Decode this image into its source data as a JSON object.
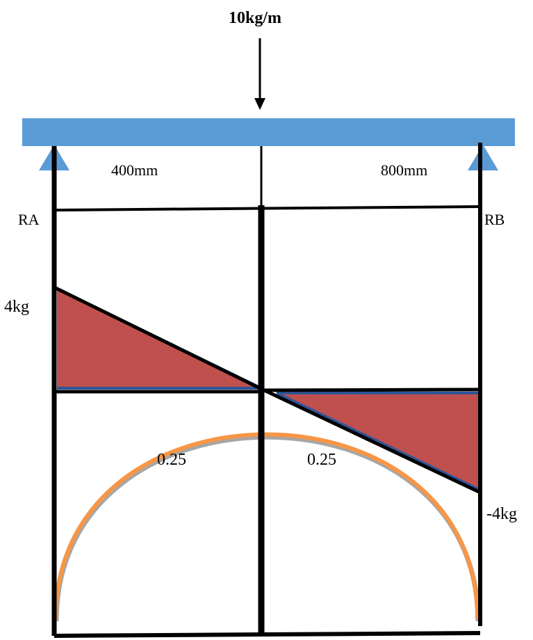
{
  "load_label": "10kg/m",
  "span_left_label": "400mm",
  "span_right_label": "800mm",
  "support_left_label": "RA",
  "support_right_label": "RB",
  "shear_max_label": "4kg",
  "shear_min_label": "-4kg",
  "left_value_label": "0.25",
  "right_value_label": "0.25",
  "colors": {
    "beam": "#5b9bd5",
    "support": "#5b9bd5",
    "shear_fill": "#c0504d",
    "shear_edge": "#2f5597",
    "moment_curve": "#f79646",
    "lines": "#000000"
  }
}
